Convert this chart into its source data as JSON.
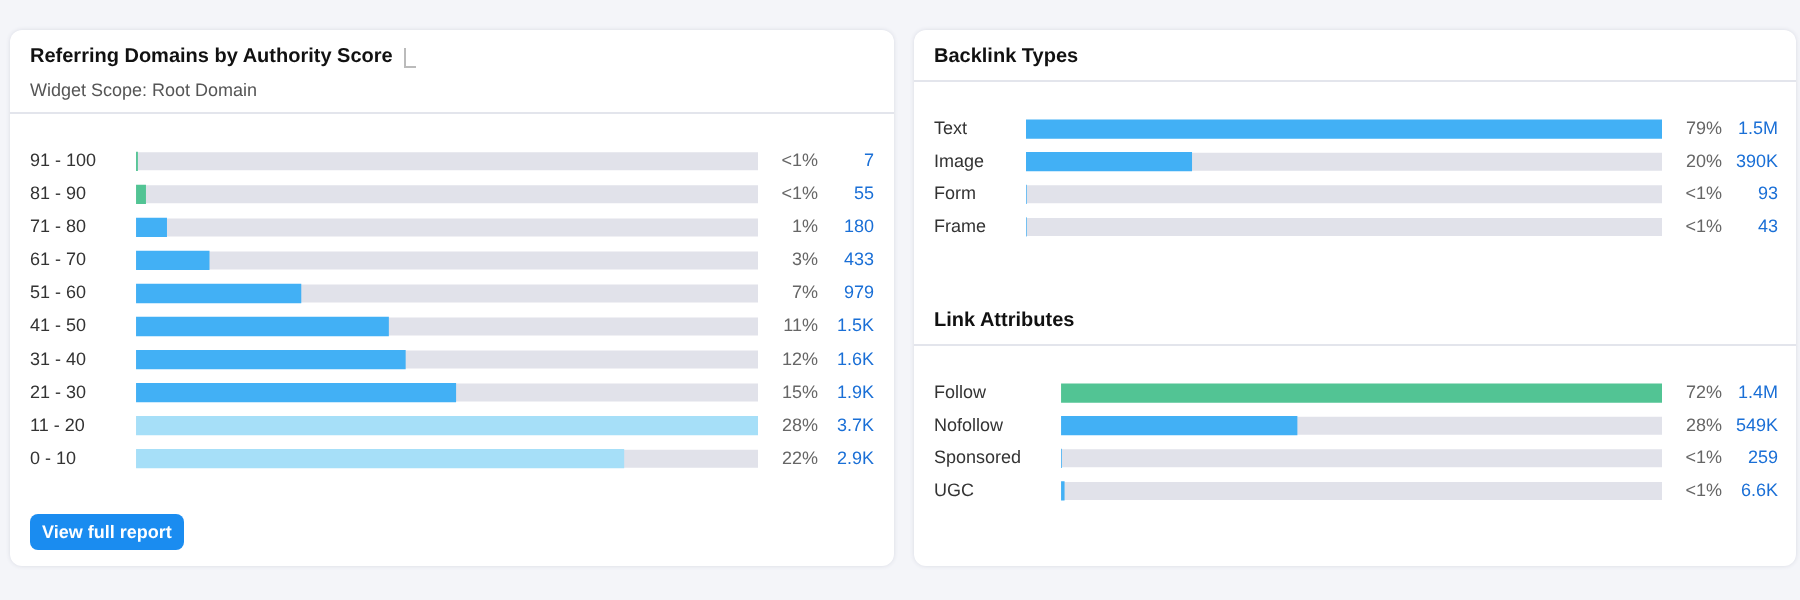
{
  "chart_data": [
    {
      "type": "bar",
      "orientation": "horizontal",
      "title": "Referring Domains by Authority Score",
      "subtitle": "Widget Scope: Root Domain",
      "categories": [
        "91 - 100",
        "81 - 90",
        "71 - 80",
        "61 - 70",
        "51 - 60",
        "41 - 50",
        "31 - 40",
        "21 - 30",
        "11 - 20",
        "0 - 10"
      ],
      "values": [
        7,
        55,
        180,
        433,
        979,
        1500,
        1600,
        1900,
        3700,
        2900
      ],
      "colors": [
        "#52c494",
        "#52c494",
        "#42b0f5",
        "#42b0f5",
        "#42b0f5",
        "#42b0f5",
        "#42b0f5",
        "#42b0f5",
        "#a6dff8",
        "#a6dff8"
      ],
      "value_labels": [
        "7",
        "55",
        "180",
        "433",
        "979",
        "1.5K",
        "1.6K",
        "1.9K",
        "3.7K",
        "2.9K"
      ],
      "annotations": [
        "<1%",
        "<1%",
        "1%",
        "3%",
        "7%",
        "11%",
        "12%",
        "15%",
        "28%",
        "22%",
        "View full report"
      ],
      "tick_labels": "y",
      "grid": false,
      "legend": false
    },
    {
      "type": "bar",
      "orientation": "horizontal",
      "title": "Backlink Types",
      "categories": [
        "Text",
        "Image",
        "Form",
        "Frame"
      ],
      "values": [
        1500000,
        390000,
        93,
        43
      ],
      "colors": [
        "#42b0f5",
        "#42b0f5",
        "#42b0f5",
        "#42b0f5"
      ],
      "value_labels": [
        "1.5M",
        "390K",
        "93",
        "43"
      ],
      "annotations": [
        "79%",
        "20%",
        "<1%",
        "<1%"
      ],
      "tick_labels": "y",
      "grid": false,
      "legend": false
    },
    {
      "type": "bar",
      "orientation": "horizontal",
      "title": "Link Attributes",
      "categories": [
        "Follow",
        "Nofollow",
        "Sponsored",
        "UGC"
      ],
      "values": [
        1400000,
        549000,
        259,
        6600
      ],
      "colors": [
        "#52c494",
        "#42b0f5",
        "#42b0f5",
        "#42b0f5"
      ],
      "value_labels": [
        "1.4M",
        "549K",
        "259",
        "6.6K"
      ],
      "annotations": [
        "72%",
        "28%",
        "<1%",
        "<1%"
      ],
      "tick_labels": "y",
      "grid": false,
      "legend": false
    }
  ]
}
